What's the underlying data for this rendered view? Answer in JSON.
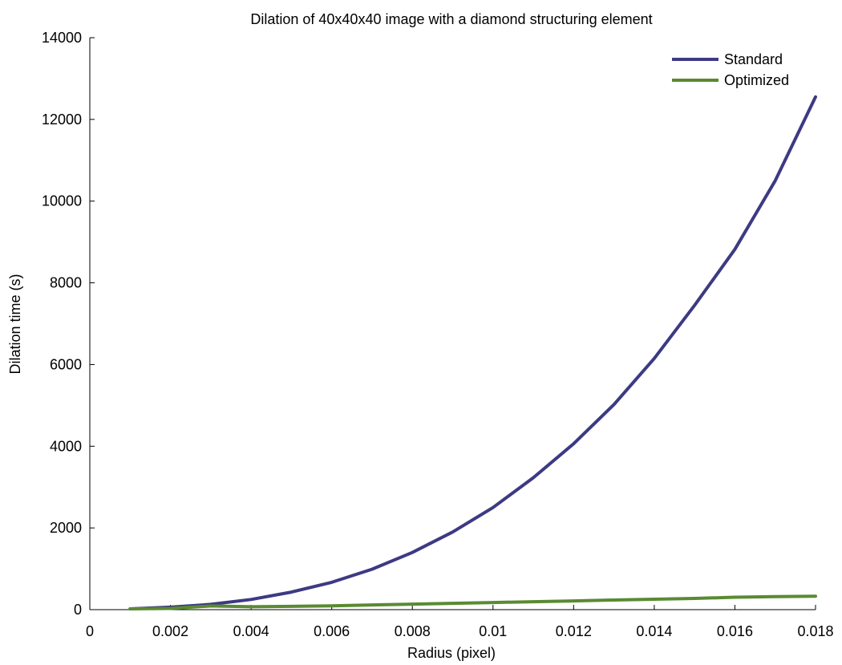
{
  "chart_data": {
    "type": "line",
    "title": "Dilation of 40x40x40 image with a diamond structuring element",
    "xlabel": "Radius (pixel)",
    "ylabel": "Dilation time (s)",
    "xlim": [
      0,
      0.018
    ],
    "ylim": [
      0,
      14000
    ],
    "x_ticks": [
      0,
      0.002,
      0.004,
      0.006,
      0.008,
      0.01,
      0.012,
      0.014,
      0.016,
      0.018
    ],
    "x_tick_labels": [
      "0",
      "0.002",
      "0.004",
      "0.006",
      "0.008",
      "0.01",
      "0.012",
      "0.014",
      "0.016",
      "0.018"
    ],
    "y_ticks": [
      0,
      2000,
      4000,
      6000,
      8000,
      10000,
      12000,
      14000
    ],
    "y_tick_labels": [
      "0",
      "2000",
      "4000",
      "6000",
      "8000",
      "10000",
      "12000",
      "14000"
    ],
    "grid": false,
    "legend_position": "top-right",
    "x": [
      0.001,
      0.002,
      0.003,
      0.004,
      0.005,
      0.006,
      0.007,
      0.008,
      0.009,
      0.01,
      0.011,
      0.012,
      0.013,
      0.014,
      0.015,
      0.016,
      0.017,
      0.018
    ],
    "series": [
      {
        "name": "Standard",
        "color": "#3d3a83",
        "values": [
          20,
          60,
          130,
          250,
          430,
          670,
          990,
          1400,
          1900,
          2500,
          3230,
          4060,
          5020,
          6150,
          7450,
          8820,
          10500,
          12550
        ]
      },
      {
        "name": "Optimized",
        "color": "#5a8a32",
        "values": [
          20,
          30,
          90,
          70,
          80,
          95,
          115,
          135,
          155,
          175,
          195,
          215,
          235,
          255,
          275,
          305,
          320,
          330
        ]
      }
    ]
  }
}
